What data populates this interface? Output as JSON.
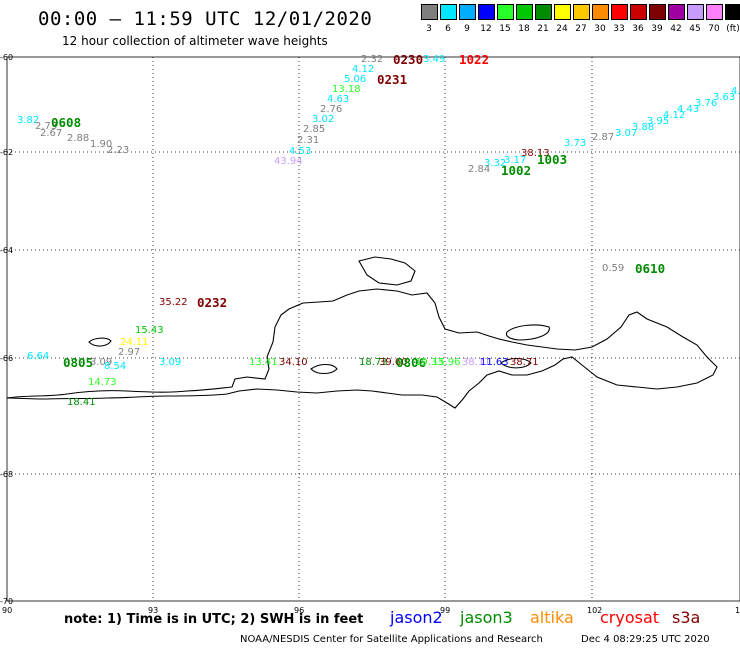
{
  "header": {
    "title": "00:00 – 11:59 UTC 12/01/2020",
    "subtitle": "12 hour collection of altimeter wave heights"
  },
  "legend": {
    "colors": [
      "#7f7f7f",
      "#00e7ff",
      "#00adff",
      "#0000ff",
      "#28ff28",
      "#00c800",
      "#008c00",
      "#ffff00",
      "#ffc800",
      "#ff8c00",
      "#ff0000",
      "#c80000",
      "#7f0000",
      "#a000a0",
      "#c89bff",
      "#ff80ff",
      "#000000"
    ],
    "labels": [
      "3",
      "6",
      "9",
      "12",
      "15",
      "18",
      "21",
      "24",
      "27",
      "30",
      "33",
      "36",
      "39",
      "42",
      "45",
      "70",
      "(ft)"
    ]
  },
  "map": {
    "lat_ticks": [
      "-60",
      "-62",
      "-64",
      "-66",
      "-68",
      "-70"
    ],
    "lon_ticks": [
      "90",
      "93",
      "96",
      "99",
      "102",
      "105"
    ],
    "observations": [
      {
        "text": "2.32",
        "color": "#7f7f7f"
      },
      {
        "text": "0230",
        "color": "#7f0000",
        "bold": true
      },
      {
        "text": "3.49",
        "color": "#00e7ff"
      },
      {
        "text": "1022",
        "color": "#ff0000",
        "bold": true
      },
      {
        "text": "4.12",
        "color": "#00e7ff"
      },
      {
        "text": "5.06",
        "color": "#00e7ff"
      },
      {
        "text": "0231",
        "color": "#7f0000",
        "bold": true
      },
      {
        "text": "13.18",
        "color": "#28ff28"
      },
      {
        "text": "4.63",
        "color": "#00e7ff"
      },
      {
        "text": "2.76",
        "color": "#7f7f7f"
      },
      {
        "text": "3.02",
        "color": "#00e7ff"
      },
      {
        "text": "2.85",
        "color": "#7f7f7f"
      },
      {
        "text": "2.31",
        "color": "#7f7f7f"
      },
      {
        "text": "4.53",
        "color": "#00e7ff"
      },
      {
        "text": "43.94",
        "color": "#c89bff"
      },
      {
        "text": "3.82",
        "color": "#00e7ff"
      },
      {
        "text": "2.73",
        "color": "#7f7f7f"
      },
      {
        "text": "0608",
        "color": "#008c00",
        "bold": true
      },
      {
        "text": "2.67",
        "color": "#7f7f7f"
      },
      {
        "text": "2.88",
        "color": "#7f7f7f"
      },
      {
        "text": "1.90",
        "color": "#7f7f7f"
      },
      {
        "text": "2.23",
        "color": "#7f7f7f"
      },
      {
        "text": "4.39",
        "color": "#00e7ff"
      },
      {
        "text": "3.63",
        "color": "#00e7ff"
      },
      {
        "text": "3.76",
        "color": "#00e7ff"
      },
      {
        "text": "4.43",
        "color": "#00e7ff"
      },
      {
        "text": "4.12",
        "color": "#00e7ff"
      },
      {
        "text": "3.95",
        "color": "#00e7ff"
      },
      {
        "text": "3.88",
        "color": "#00e7ff"
      },
      {
        "text": "3.07",
        "color": "#00e7ff"
      },
      {
        "text": "2.87",
        "color": "#7f7f7f"
      },
      {
        "text": "3.73",
        "color": "#00e7ff"
      },
      {
        "text": "38.13",
        "color": "#7f0000"
      },
      {
        "text": "1003",
        "color": "#008c00",
        "bold": true
      },
      {
        "text": "3.32",
        "color": "#00e7ff"
      },
      {
        "text": "3.17",
        "color": "#00e7ff"
      },
      {
        "text": "2.84",
        "color": "#7f7f7f"
      },
      {
        "text": "1002",
        "color": "#008c00",
        "bold": true
      },
      {
        "text": "0.59",
        "color": "#7f7f7f"
      },
      {
        "text": "0610",
        "color": "#008c00",
        "bold": true
      },
      {
        "text": "35.22",
        "color": "#7f0000"
      },
      {
        "text": "0232",
        "color": "#7f0000",
        "bold": true
      },
      {
        "text": "15.43",
        "color": "#00c800"
      },
      {
        "text": "24.11",
        "color": "#ffff00"
      },
      {
        "text": "2.97",
        "color": "#7f7f7f"
      },
      {
        "text": "6.64",
        "color": "#00e7ff"
      },
      {
        "text": "0805",
        "color": "#008c00",
        "bold": true
      },
      {
        "text": "3.09",
        "color": "#7f7f7f"
      },
      {
        "text": "8.54",
        "color": "#00e7ff"
      },
      {
        "text": "3.09",
        "color": "#00e7ff"
      },
      {
        "text": "14.73",
        "color": "#28ff28"
      },
      {
        "text": "18.41",
        "color": "#008c00"
      },
      {
        "text": "13.41",
        "color": "#28ff28"
      },
      {
        "text": "34.10",
        "color": "#7f0000"
      },
      {
        "text": "18.73",
        "color": "#008c00"
      },
      {
        "text": "39.60",
        "color": "#7f0000"
      },
      {
        "text": "0806",
        "color": "#008c00",
        "bold": true
      },
      {
        "text": "19.33",
        "color": "#28ff28"
      },
      {
        "text": "15.96",
        "color": "#28ff28"
      },
      {
        "text": "38.11",
        "color": "#c89bff"
      },
      {
        "text": "11.63",
        "color": "#0000ff"
      },
      {
        "text": "38.71",
        "color": "#7f0000"
      }
    ]
  },
  "footer": {
    "note": "note: 1) Time is in UTC; 2) SWH is in feet",
    "satellites": [
      {
        "name": "jason2",
        "color": "#0000ff"
      },
      {
        "name": "jason3",
        "color": "#008c00"
      },
      {
        "name": "altika",
        "color": "#ff8c00"
      },
      {
        "name": "cryosat",
        "color": "#ff0000"
      },
      {
        "name": "s3a",
        "color": "#7f0000"
      }
    ],
    "credit": "NOAA/NESDIS Center for Satellite Applications and Research",
    "timestamp": "Dec  4 08:29:25 UTC 2020"
  }
}
